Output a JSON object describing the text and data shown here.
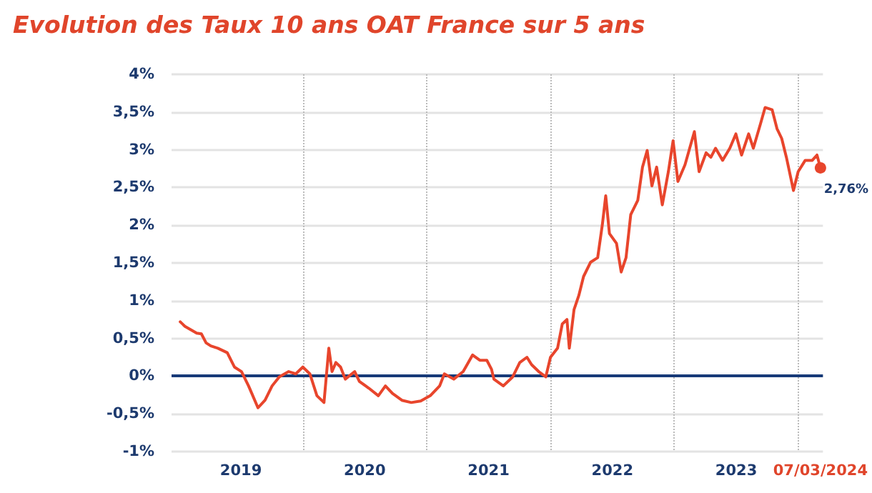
{
  "chart_data": {
    "type": "line",
    "title": "Evolution des Taux 10 ans OAT France sur 5 ans",
    "x": [
      2019.01,
      2019.048,
      2019.143,
      2019.181,
      2019.219,
      2019.257,
      2019.314,
      2019.39,
      2019.448,
      2019.505,
      2019.562,
      2019.638,
      2019.695,
      2019.752,
      2019.81,
      2019.886,
      2019.943,
      2020.0,
      2020.057,
      2020.114,
      2020.171,
      2020.21,
      2020.236,
      2020.267,
      2020.305,
      2020.343,
      2020.419,
      2020.457,
      2020.533,
      2020.61,
      2020.667,
      2020.724,
      2020.8,
      2020.876,
      2020.952,
      2021.029,
      2021.105,
      2021.143,
      2021.219,
      2021.295,
      2021.371,
      2021.429,
      2021.486,
      2021.524,
      2021.543,
      2021.619,
      2021.695,
      2021.752,
      2021.81,
      2021.848,
      2021.905,
      2021.962,
      2022.0,
      2022.057,
      2022.095,
      2022.133,
      2022.152,
      2022.19,
      2022.229,
      2022.267,
      2022.324,
      2022.381,
      2022.419,
      2022.446,
      2022.476,
      2022.533,
      2022.571,
      2022.61,
      2022.648,
      2022.705,
      2022.743,
      2022.781,
      2022.819,
      2022.857,
      2022.903,
      2022.952,
      2022.99,
      2023.029,
      2023.086,
      2023.162,
      2023.2,
      2023.257,
      2023.295,
      2023.333,
      2023.39,
      2023.448,
      2023.497,
      2023.543,
      2023.6,
      2023.638,
      2023.695,
      2023.733,
      2023.79,
      2023.829,
      2023.867,
      2023.905,
      2023.962,
      2024.0,
      2024.057,
      2024.114,
      2024.152,
      2024.18
    ],
    "series": [
      {
        "color": "#e8452c",
        "values": [
          0.72,
          0.66,
          0.57,
          0.56,
          0.44,
          0.4,
          0.37,
          0.31,
          0.12,
          0.06,
          -0.13,
          -0.42,
          -0.32,
          -0.13,
          -0.01,
          0.06,
          0.03,
          0.12,
          0.03,
          -0.26,
          -0.35,
          0.37,
          0.06,
          0.18,
          0.12,
          -0.04,
          0.06,
          -0.07,
          -0.16,
          -0.26,
          -0.13,
          -0.23,
          -0.32,
          -0.35,
          -0.33,
          -0.26,
          -0.13,
          0.03,
          -0.04,
          0.06,
          0.28,
          0.21,
          0.21,
          0.09,
          -0.04,
          -0.13,
          -0.01,
          0.18,
          0.25,
          0.15,
          0.06,
          -0.01,
          0.25,
          0.37,
          0.69,
          0.75,
          0.37,
          0.88,
          1.07,
          1.32,
          1.51,
          1.57,
          2.01,
          2.39,
          1.89,
          1.76,
          1.38,
          1.57,
          2.14,
          2.33,
          2.77,
          2.99,
          2.52,
          2.77,
          2.27,
          2.71,
          3.12,
          2.58,
          2.8,
          3.24,
          2.71,
          2.96,
          2.9,
          3.02,
          2.86,
          3.02,
          3.21,
          2.93,
          3.21,
          3.02,
          3.34,
          3.56,
          3.53,
          3.28,
          3.15,
          2.9,
          2.46,
          2.71,
          2.86,
          2.86,
          2.93,
          2.76
        ]
      }
    ],
    "xlim": [
      2018.94,
      2024.2
    ],
    "xticks": [
      {
        "value": 2019.5,
        "label": "2019"
      },
      {
        "value": 2020,
        "label": null
      },
      {
        "value": 2020.5,
        "label": "2020"
      },
      {
        "value": 2021,
        "label": null
      },
      {
        "value": 2021.5,
        "label": "2021"
      },
      {
        "value": 2022,
        "label": null
      },
      {
        "value": 2022.5,
        "label": "2022"
      },
      {
        "value": 2023,
        "label": null
      },
      {
        "value": 2023.5,
        "label": "2023"
      },
      {
        "value": 2024,
        "label": null
      },
      {
        "value": 2024.18,
        "label": "07/03/2024"
      }
    ],
    "ylim": [
      -1,
      4
    ],
    "yticks": [
      {
        "value": -1,
        "label": "-1%"
      },
      {
        "value": -0.5,
        "label": "-0,5%"
      },
      {
        "value": 0,
        "label": "0%"
      },
      {
        "value": 0.5,
        "label": "0,5%"
      },
      {
        "value": 1,
        "label": "1%"
      },
      {
        "value": 1.5,
        "label": "1,5%"
      },
      {
        "value": 2,
        "label": "2%"
      },
      {
        "value": 2.5,
        "label": "2,5%"
      },
      {
        "value": 3,
        "label": "3%"
      },
      {
        "value": 3.5,
        "label": "3,5%"
      },
      {
        "value": 4,
        "label": "4%"
      }
    ],
    "ref_lines": [
      {
        "axis": "y",
        "value": 0,
        "color": "#173a78"
      }
    ],
    "annotations": [
      {
        "text": "2,76%",
        "x": 2024.18,
        "y": 2.76
      }
    ],
    "grid": true,
    "marker": "none",
    "line_style": "solid"
  }
}
